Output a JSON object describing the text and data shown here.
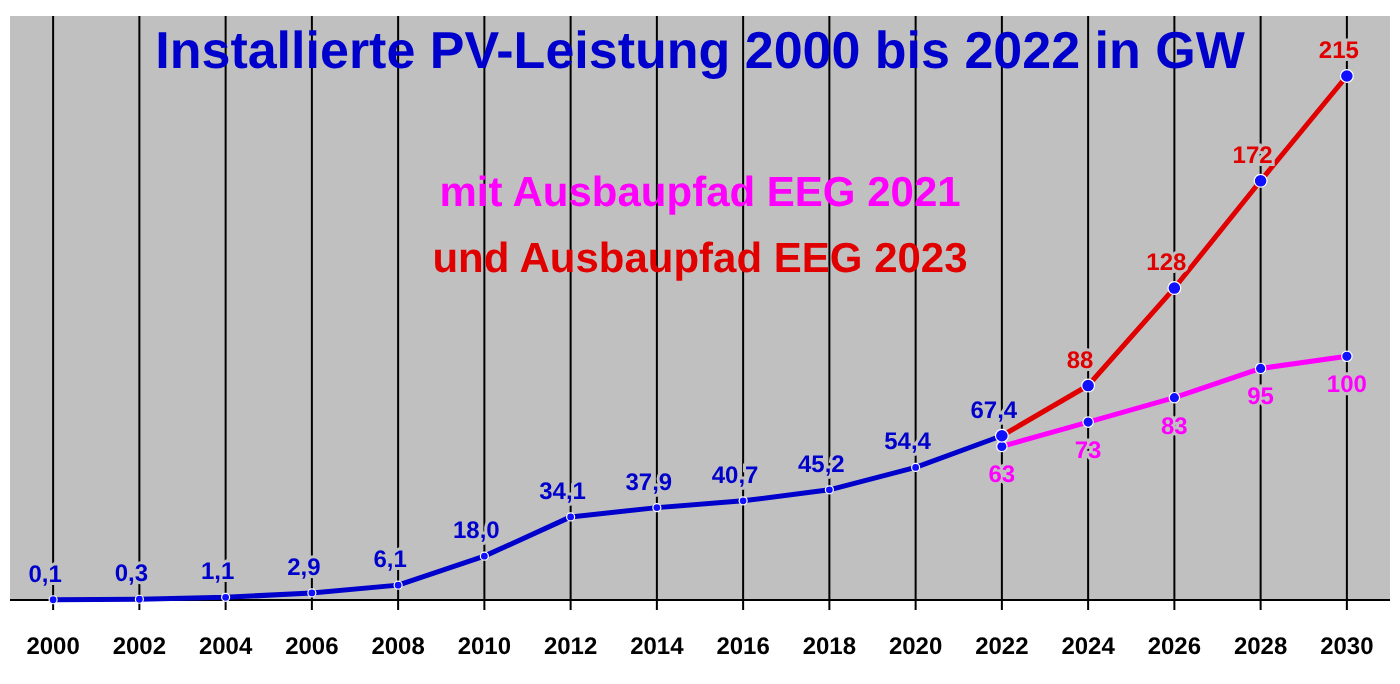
{
  "chart_data": {
    "type": "line",
    "title": "Installierte PV-Leistung 2000 bis 2022 in GW",
    "xlim": [
      1999,
      2031
    ],
    "xticks": [
      2000,
      2002,
      2004,
      2006,
      2008,
      2010,
      2012,
      2014,
      2016,
      2018,
      2020,
      2022,
      2024,
      2026,
      2028,
      2030
    ],
    "grid": "x",
    "marker": "circle",
    "line_style": "solid",
    "series": [
      {
        "color": "#0000cc",
        "x": [
          2000,
          2002,
          2004,
          2006,
          2008,
          2010,
          2012,
          2014,
          2016,
          2018,
          2020,
          2022
        ],
        "values": [
          0.1,
          0.3,
          1.1,
          2.9,
          6.1,
          18.0,
          34.1,
          37.9,
          40.7,
          45.2,
          54.4,
          67.4
        ],
        "value_labels": [
          "0,1",
          "0,3",
          "1,1",
          "2,9",
          "6,1",
          "18,0",
          "34,1",
          "37,9",
          "40,7",
          "45,2",
          "54,4",
          "67,4"
        ]
      },
      {
        "name": "mit Ausbaupfad EEG 2021",
        "color": "#ff00ff",
        "x": [
          2022,
          2024,
          2026,
          2028,
          2030
        ],
        "values": [
          63,
          73,
          83,
          95,
          100
        ],
        "value_labels": [
          "63",
          "73",
          "83",
          "95",
          "100"
        ]
      },
      {
        "name": "und Ausbaupfad EEG 2023",
        "color": "#e00000",
        "x": [
          2022,
          2024,
          2026,
          2028,
          2030
        ],
        "values": [
          67.4,
          88,
          128,
          172,
          215
        ],
        "value_labels": [
          null,
          "88",
          "128",
          "172",
          "215"
        ]
      }
    ]
  }
}
